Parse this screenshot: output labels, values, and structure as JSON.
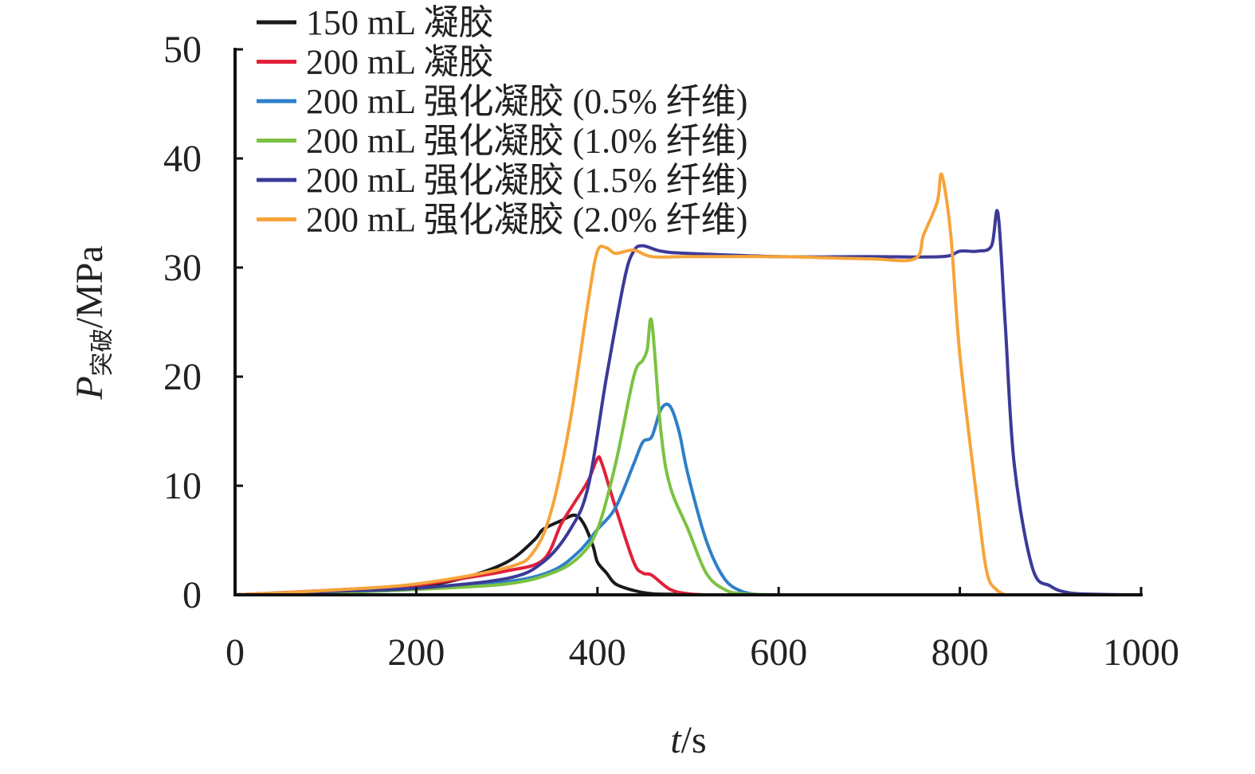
{
  "chart_data": {
    "type": "line",
    "title": "",
    "xlabel_italic": "t",
    "xlabel_rest": "/s",
    "ylabel_italic": "P",
    "ylabel_sub": "突破",
    "ylabel_rest": "/MPa",
    "xlim": [
      0,
      1000
    ],
    "ylim": [
      0,
      50
    ],
    "xticks": [
      "0",
      "200",
      "400",
      "600",
      "800",
      "1000"
    ],
    "yticks": [
      "0",
      "10",
      "20",
      "30",
      "40",
      "50"
    ],
    "xtick_values": [
      0,
      200,
      400,
      600,
      800,
      1000
    ],
    "ytick_values": [
      0,
      10,
      20,
      30,
      40,
      50
    ],
    "grid": false,
    "legend_position": "top-left",
    "series": [
      {
        "name": "150 mL 凝胶",
        "color": "#1a1a1a",
        "x": [
          0,
          100,
          200,
          250,
          300,
          330,
          340,
          360,
          375,
          385,
          395,
          400,
          410,
          420,
          440,
          460,
          480,
          500
        ],
        "y": [
          0,
          0.3,
          0.8,
          1.5,
          3.0,
          5.0,
          6.0,
          6.8,
          7.3,
          6.5,
          4.5,
          3.0,
          2.0,
          1.0,
          0.4,
          0.1,
          0.05,
          0
        ]
      },
      {
        "name": "200 mL 凝胶",
        "color": "#e0203a",
        "x": [
          0,
          100,
          200,
          250,
          300,
          340,
          360,
          375,
          390,
          400,
          405,
          420,
          440,
          450,
          460,
          480,
          500,
          520
        ],
        "y": [
          0,
          0.4,
          0.9,
          1.5,
          2.2,
          3.2,
          6.5,
          8.5,
          10.5,
          12.5,
          12.0,
          8.0,
          3.0,
          2.0,
          1.8,
          0.5,
          0.1,
          0
        ]
      },
      {
        "name": "200 mL 强化凝胶 (0.5% 纤维)",
        "color": "#2e7fc8",
        "x": [
          0,
          100,
          200,
          300,
          350,
          380,
          400,
          420,
          440,
          450,
          460,
          470,
          480,
          490,
          500,
          520,
          540,
          560,
          580
        ],
        "y": [
          0,
          0.2,
          0.5,
          1.2,
          2.2,
          4.0,
          6.0,
          8.0,
          12.0,
          14.0,
          14.5,
          17.0,
          17.3,
          15.0,
          11.0,
          5.0,
          1.5,
          0.3,
          0
        ]
      },
      {
        "name": "200 mL 强化凝胶 (1.0% 纤维)",
        "color": "#7cc242",
        "x": [
          0,
          100,
          200,
          300,
          350,
          380,
          400,
          420,
          440,
          450,
          455,
          460,
          470,
          480,
          500,
          520,
          540,
          560,
          600
        ],
        "y": [
          0,
          0.2,
          0.5,
          1.0,
          2.0,
          3.5,
          6.0,
          12.0,
          20.0,
          21.5,
          22.5,
          25.0,
          15.0,
          10.0,
          6.0,
          2.0,
          0.5,
          0.1,
          0
        ]
      },
      {
        "name": "200 mL 强化凝胶 (1.5% 纤维)",
        "color": "#3b3a98",
        "x": [
          0,
          100,
          200,
          300,
          340,
          370,
          390,
          410,
          430,
          440,
          450,
          470,
          500,
          600,
          700,
          780,
          800,
          820,
          835,
          842,
          850,
          860,
          880,
          900,
          920,
          950,
          1000
        ],
        "y": [
          0,
          0.3,
          0.6,
          1.5,
          3.0,
          6.0,
          10.0,
          20.0,
          29.0,
          31.5,
          32.0,
          31.5,
          31.3,
          31.0,
          31.0,
          31.0,
          31.5,
          31.5,
          32.0,
          35.0,
          25.0,
          12.0,
          2.5,
          0.8,
          0.2,
          0.05,
          0
        ]
      },
      {
        "name": "200 mL 强化凝胶 (2.0% 纤维)",
        "color": "#f6a43a",
        "x": [
          0,
          100,
          200,
          300,
          330,
          350,
          370,
          390,
          400,
          410,
          420,
          440,
          460,
          500,
          600,
          700,
          750,
          760,
          775,
          780,
          790,
          800,
          820,
          830,
          840,
          850
        ],
        "y": [
          0,
          0.4,
          1.0,
          2.5,
          4.0,
          8.0,
          16.0,
          27.0,
          31.5,
          31.8,
          31.3,
          31.6,
          31.0,
          31.0,
          31.0,
          30.8,
          30.8,
          33.0,
          36.0,
          38.5,
          33.0,
          22.0,
          8.0,
          2.0,
          0.5,
          0
        ]
      }
    ]
  }
}
